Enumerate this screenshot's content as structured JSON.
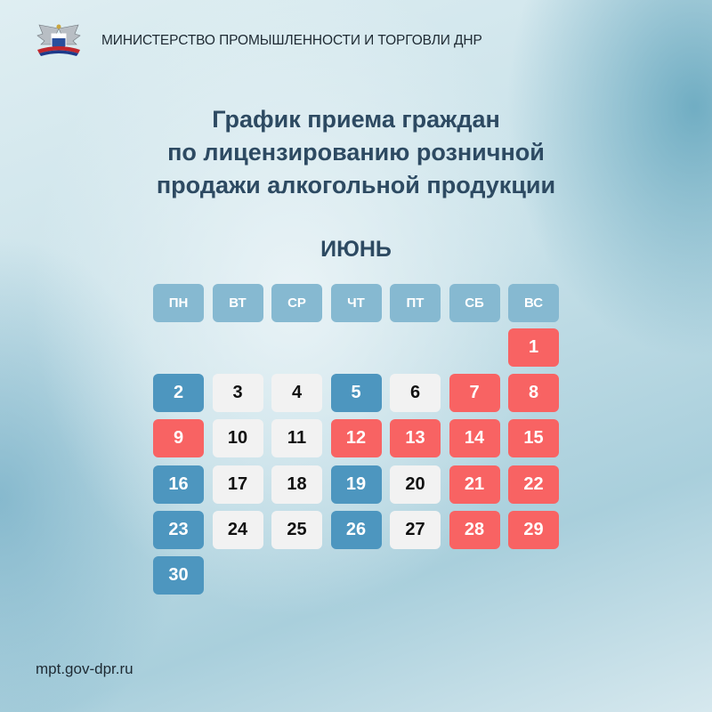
{
  "header": {
    "ministry": "МИНИСТЕРСТВО ПРОМЫШЛЕННОСТИ И ТОРГОВЛИ ДНР",
    "logo": "coat-of-arms"
  },
  "title": [
    "График приема граждан",
    "по лицензированию розничной",
    "продажи алкогольной продукции"
  ],
  "month": "ИЮНЬ",
  "weekdays": [
    "ПН",
    "ВТ",
    "СР",
    "ЧТ",
    "ПТ",
    "СБ",
    "ВС"
  ],
  "first_weekday": "ВС",
  "colors": {
    "reception": "#4d96bf",
    "regular": "#f2f2f2",
    "holiday": "#f86363",
    "weekday_header": "#86b9d1"
  },
  "days": [
    {
      "n": "1",
      "type": "holiday"
    },
    {
      "n": "2",
      "type": "reception"
    },
    {
      "n": "3",
      "type": "regular"
    },
    {
      "n": "4",
      "type": "regular"
    },
    {
      "n": "5",
      "type": "reception"
    },
    {
      "n": "6",
      "type": "regular"
    },
    {
      "n": "7",
      "type": "holiday"
    },
    {
      "n": "8",
      "type": "holiday"
    },
    {
      "n": "9",
      "type": "holiday"
    },
    {
      "n": "10",
      "type": "regular"
    },
    {
      "n": "11",
      "type": "regular"
    },
    {
      "n": "12",
      "type": "holiday"
    },
    {
      "n": "13",
      "type": "holiday"
    },
    {
      "n": "14",
      "type": "holiday"
    },
    {
      "n": "15",
      "type": "holiday"
    },
    {
      "n": "16",
      "type": "reception"
    },
    {
      "n": "17",
      "type": "regular"
    },
    {
      "n": "18",
      "type": "regular"
    },
    {
      "n": "19",
      "type": "reception"
    },
    {
      "n": "20",
      "type": "regular"
    },
    {
      "n": "21",
      "type": "holiday"
    },
    {
      "n": "22",
      "type": "holiday"
    },
    {
      "n": "23",
      "type": "reception"
    },
    {
      "n": "24",
      "type": "regular"
    },
    {
      "n": "25",
      "type": "regular"
    },
    {
      "n": "26",
      "type": "reception"
    },
    {
      "n": "27",
      "type": "regular"
    },
    {
      "n": "28",
      "type": "holiday"
    },
    {
      "n": "29",
      "type": "holiday"
    },
    {
      "n": "30",
      "type": "reception"
    }
  ],
  "footer": {
    "url": "mpt.gov-dpr.ru"
  }
}
